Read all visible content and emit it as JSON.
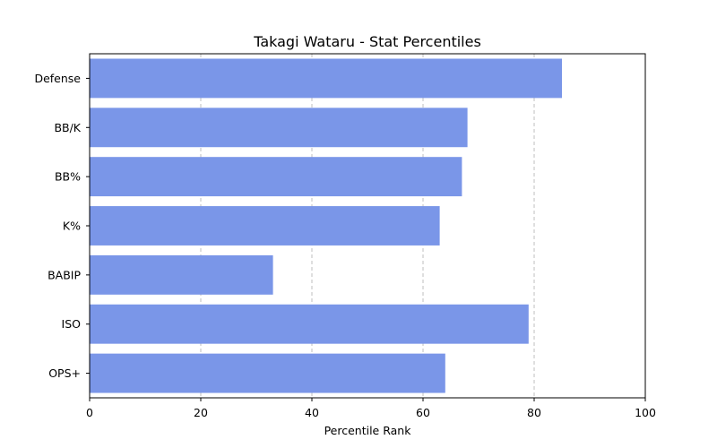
{
  "chart_data": {
    "type": "bar",
    "orientation": "horizontal",
    "title": "Takagi Wataru - Stat Percentiles",
    "xlabel": "Percentile Rank",
    "ylabel": "",
    "categories": [
      "Defense",
      "BB/K",
      "BB%",
      "K%",
      "BABIP",
      "ISO",
      "OPS+"
    ],
    "values": [
      85,
      68,
      67,
      63,
      33,
      79,
      64
    ],
    "xlim": [
      0,
      100
    ],
    "xticks": [
      0,
      20,
      40,
      60,
      80,
      100
    ],
    "grid": "x-axis dashed",
    "legend": "none",
    "bar_color": "#7a96e8"
  }
}
